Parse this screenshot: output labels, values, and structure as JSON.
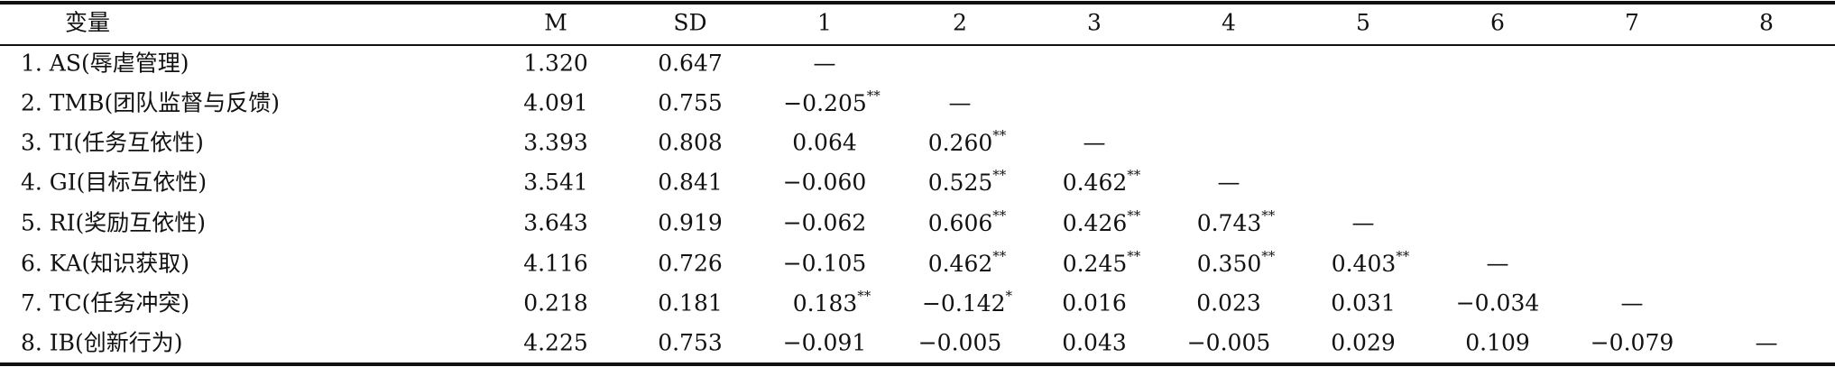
{
  "table": {
    "header": [
      "变量",
      "M",
      "SD",
      "1",
      "2",
      "3",
      "4",
      "5",
      "6",
      "7",
      "8"
    ],
    "rows": [
      {
        "label": "1. AS(辱虐管理)",
        "m": "1.320",
        "sd": "0.647",
        "r": [
          "—"
        ]
      },
      {
        "label": "2. TMB(团队监督与反馈)",
        "m": "4.091",
        "sd": "0.755",
        "r": [
          {
            "text": "−0.205",
            "sig": "**"
          },
          "—"
        ]
      },
      {
        "label": "3. TI(任务互依性)",
        "m": "3.393",
        "sd": "0.808",
        "r": [
          "0.064",
          {
            "text": "0.260",
            "sig": "**"
          },
          "—"
        ]
      },
      {
        "label": "4. GI(目标互依性)",
        "m": "3.541",
        "sd": "0.841",
        "r": [
          "−0.060",
          {
            "text": "0.525",
            "sig": "**"
          },
          {
            "text": "0.462",
            "sig": "**"
          },
          "—"
        ]
      },
      {
        "label": "5. RI(奖励互依性)",
        "m": "3.643",
        "sd": "0.919",
        "r": [
          "−0.062",
          {
            "text": "0.606",
            "sig": "**"
          },
          {
            "text": "0.426",
            "sig": "**"
          },
          {
            "text": "0.743",
            "sig": "**"
          },
          "—"
        ]
      },
      {
        "label": "6. KA(知识获取)",
        "m": "4.116",
        "sd": "0.726",
        "r": [
          "−0.105",
          {
            "text": "0.462",
            "sig": "**"
          },
          {
            "text": "0.245",
            "sig": "**"
          },
          {
            "text": "0.350",
            "sig": "**"
          },
          {
            "text": "0.403",
            "sig": "**"
          },
          "—"
        ]
      },
      {
        "label": "7. TC(任务冲突)",
        "m": "0.218",
        "sd": "0.181",
        "r": [
          {
            "text": "0.183",
            "sig": "**"
          },
          {
            "text": "−0.142",
            "sig": "*"
          },
          "0.016",
          "0.023",
          "0.031",
          "−0.034",
          "—"
        ]
      },
      {
        "label": "8. IB(创新行为)",
        "m": "4.225",
        "sd": "0.753",
        "r": [
          "−0.091",
          "−0.005",
          "0.043",
          "−0.005",
          "0.029",
          "0.109",
          "−0.079",
          "—"
        ]
      }
    ]
  }
}
